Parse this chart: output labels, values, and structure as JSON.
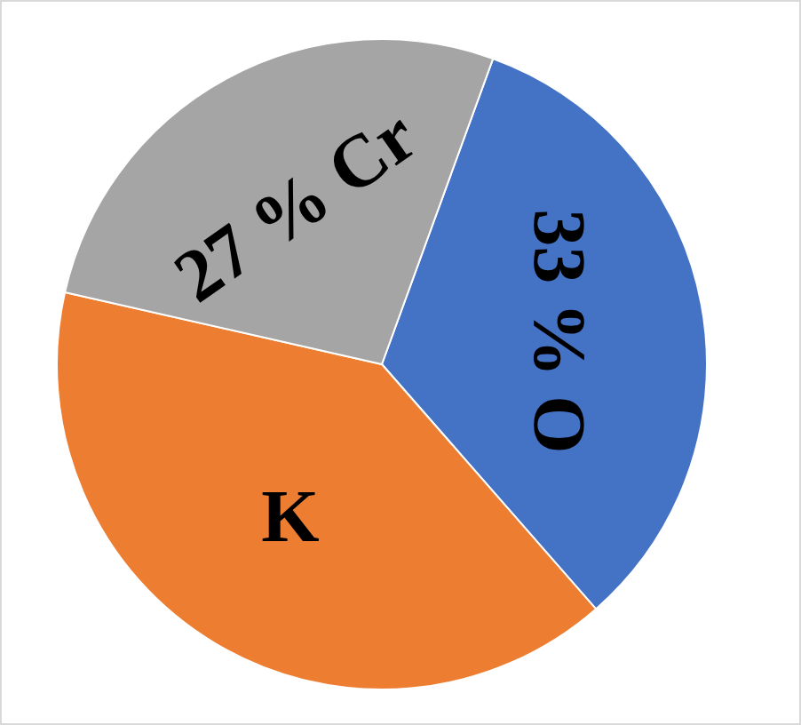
{
  "chart_data": {
    "type": "pie",
    "categories": [
      "O",
      "K",
      "Cr"
    ],
    "values": [
      33,
      40,
      27
    ],
    "colors": [
      "#4472c4",
      "#ed7d31",
      "#a5a5a5"
    ],
    "value_labels": [
      "33 %",
      null,
      "27 %"
    ]
  }
}
